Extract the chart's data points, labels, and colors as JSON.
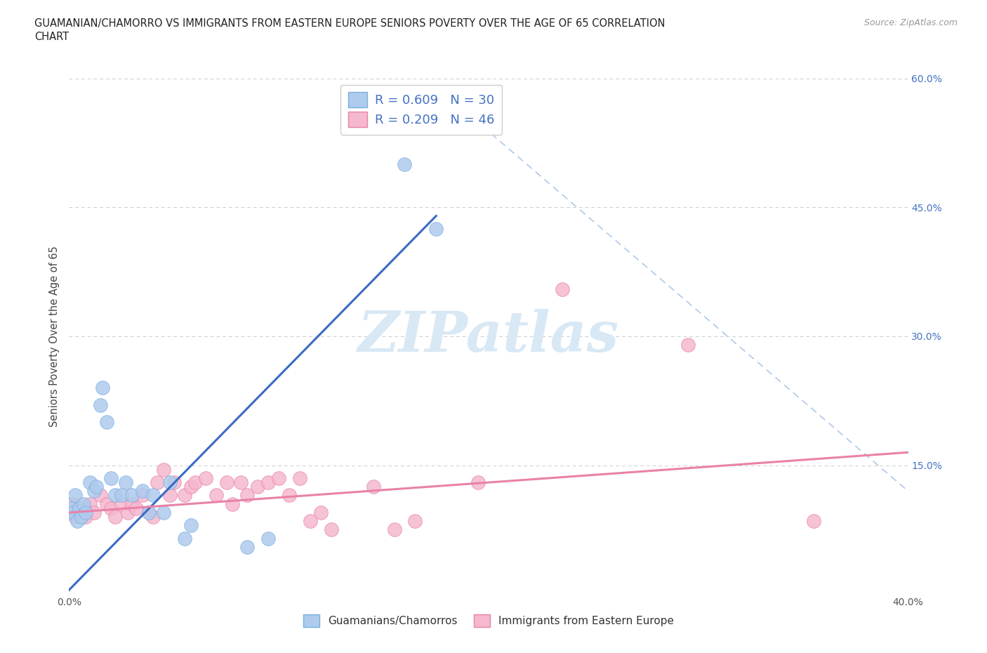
{
  "title_line1": "GUAMANIAN/CHAMORRO VS IMMIGRANTS FROM EASTERN EUROPE SENIORS POVERTY OVER THE AGE OF 65 CORRELATION",
  "title_line2": "CHART",
  "source_text": "Source: ZipAtlas.com",
  "ylabel": "Seniors Poverty Over the Age of 65",
  "xmin": 0.0,
  "xmax": 0.4,
  "ymin": 0.0,
  "ymax": 0.6,
  "x_ticks": [
    0.0,
    0.1,
    0.2,
    0.3,
    0.4
  ],
  "x_tick_labels": [
    "0.0%",
    "",
    "",
    "",
    "40.0%"
  ],
  "y_ticks": [
    0.0,
    0.15,
    0.3,
    0.45,
    0.6
  ],
  "y_tick_labels": [
    "",
    "15.0%",
    "30.0%",
    "45.0%",
    "60.0%"
  ],
  "R_blue": 0.609,
  "N_blue": 30,
  "R_pink": 0.209,
  "N_pink": 46,
  "blue_color": "#aecbee",
  "pink_color": "#f5b8ce",
  "blue_edge_color": "#7aaede",
  "pink_edge_color": "#e882a8",
  "blue_line_color": "#3a6bc4",
  "pink_line_color": "#e882a8",
  "dash_line_color": "#b0c8e8",
  "watermark_color": "#d8e8f5",
  "legend_label_blue": "Guamanians/Chamorros",
  "legend_label_pink": "Immigrants from Eastern Europe",
  "blue_scatter": [
    [
      0.001,
      0.1
    ],
    [
      0.002,
      0.095
    ],
    [
      0.003,
      0.115
    ],
    [
      0.004,
      0.085
    ],
    [
      0.005,
      0.1
    ],
    [
      0.006,
      0.09
    ],
    [
      0.007,
      0.105
    ],
    [
      0.008,
      0.095
    ],
    [
      0.01,
      0.13
    ],
    [
      0.012,
      0.12
    ],
    [
      0.013,
      0.125
    ],
    [
      0.015,
      0.22
    ],
    [
      0.016,
      0.24
    ],
    [
      0.018,
      0.2
    ],
    [
      0.02,
      0.135
    ],
    [
      0.022,
      0.115
    ],
    [
      0.025,
      0.115
    ],
    [
      0.027,
      0.13
    ],
    [
      0.03,
      0.115
    ],
    [
      0.035,
      0.12
    ],
    [
      0.038,
      0.095
    ],
    [
      0.04,
      0.115
    ],
    [
      0.045,
      0.095
    ],
    [
      0.048,
      0.13
    ],
    [
      0.055,
      0.065
    ],
    [
      0.058,
      0.08
    ],
    [
      0.085,
      0.055
    ],
    [
      0.095,
      0.065
    ],
    [
      0.16,
      0.5
    ],
    [
      0.175,
      0.425
    ]
  ],
  "pink_scatter": [
    [
      0.002,
      0.105
    ],
    [
      0.003,
      0.09
    ],
    [
      0.005,
      0.095
    ],
    [
      0.007,
      0.1
    ],
    [
      0.008,
      0.09
    ],
    [
      0.01,
      0.105
    ],
    [
      0.012,
      0.095
    ],
    [
      0.015,
      0.115
    ],
    [
      0.018,
      0.105
    ],
    [
      0.02,
      0.1
    ],
    [
      0.022,
      0.09
    ],
    [
      0.025,
      0.105
    ],
    [
      0.028,
      0.095
    ],
    [
      0.03,
      0.105
    ],
    [
      0.032,
      0.1
    ],
    [
      0.035,
      0.115
    ],
    [
      0.038,
      0.095
    ],
    [
      0.04,
      0.09
    ],
    [
      0.042,
      0.13
    ],
    [
      0.045,
      0.145
    ],
    [
      0.048,
      0.115
    ],
    [
      0.05,
      0.13
    ],
    [
      0.055,
      0.115
    ],
    [
      0.058,
      0.125
    ],
    [
      0.06,
      0.13
    ],
    [
      0.065,
      0.135
    ],
    [
      0.07,
      0.115
    ],
    [
      0.075,
      0.13
    ],
    [
      0.078,
      0.105
    ],
    [
      0.082,
      0.13
    ],
    [
      0.085,
      0.115
    ],
    [
      0.09,
      0.125
    ],
    [
      0.095,
      0.13
    ],
    [
      0.1,
      0.135
    ],
    [
      0.105,
      0.115
    ],
    [
      0.11,
      0.135
    ],
    [
      0.115,
      0.085
    ],
    [
      0.12,
      0.095
    ],
    [
      0.125,
      0.075
    ],
    [
      0.145,
      0.125
    ],
    [
      0.155,
      0.075
    ],
    [
      0.165,
      0.085
    ],
    [
      0.195,
      0.13
    ],
    [
      0.235,
      0.355
    ],
    [
      0.295,
      0.29
    ],
    [
      0.355,
      0.085
    ]
  ],
  "blue_line_x": [
    0.0,
    0.175
  ],
  "blue_line_y": [
    0.005,
    0.44
  ],
  "pink_line_x": [
    0.0,
    0.4
  ],
  "pink_line_y": [
    0.095,
    0.165
  ],
  "dash_line_x": [
    0.18,
    0.4
  ],
  "dash_line_y": [
    0.58,
    0.12
  ],
  "figsize": [
    14.06,
    9.3
  ],
  "dpi": 100
}
